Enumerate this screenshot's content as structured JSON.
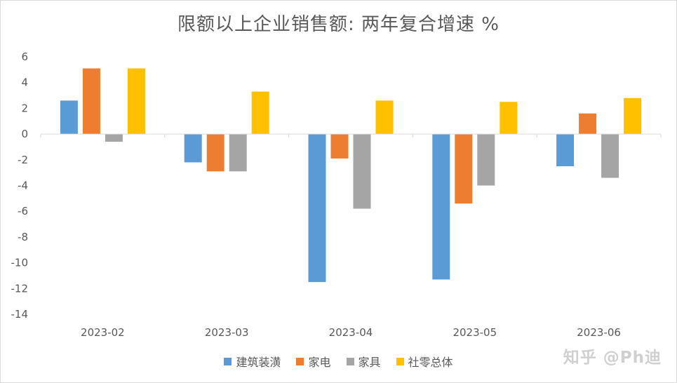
{
  "chart_data": {
    "type": "bar",
    "title": "限额以上企业销售额: 两年复合增速 %",
    "categories": [
      "2023-02",
      "2023-03",
      "2023-04",
      "2023-05",
      "2023-06"
    ],
    "series": [
      {
        "name": "建筑装潢",
        "color": "#5b9bd5",
        "values": [
          2.6,
          -2.2,
          -11.5,
          -11.3,
          -2.5
        ]
      },
      {
        "name": "家电",
        "color": "#ed7d31",
        "values": [
          5.1,
          -2.9,
          -1.9,
          -5.4,
          1.6
        ]
      },
      {
        "name": "家具",
        "color": "#a5a5a5",
        "values": [
          -0.6,
          -2.9,
          -5.8,
          -4.0,
          -3.4
        ]
      },
      {
        "name": "社零总体",
        "color": "#ffc000",
        "values": [
          5.1,
          3.3,
          2.6,
          2.5,
          2.8
        ]
      }
    ],
    "ylim": [
      -14,
      6
    ],
    "yticks": [
      6,
      4,
      2,
      0,
      -2,
      -4,
      -6,
      -8,
      -10,
      -12,
      -14
    ],
    "grid": false,
    "legend": "bottom"
  },
  "watermark": "知乎 @Ph迪"
}
